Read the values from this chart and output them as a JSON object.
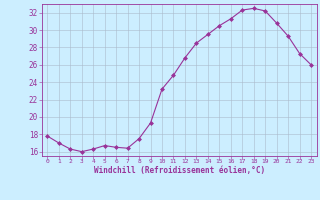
{
  "x": [
    0,
    1,
    2,
    3,
    4,
    5,
    6,
    7,
    8,
    9,
    10,
    11,
    12,
    13,
    14,
    15,
    16,
    17,
    18,
    19,
    20,
    21,
    22,
    23
  ],
  "y": [
    17.8,
    17.0,
    16.3,
    16.0,
    16.3,
    16.7,
    16.5,
    16.4,
    17.5,
    19.3,
    23.2,
    24.8,
    26.8,
    28.5,
    29.5,
    30.5,
    31.3,
    32.3,
    32.5,
    32.2,
    30.8,
    29.3,
    27.3,
    26.0
  ],
  "line_color": "#993399",
  "marker": "D",
  "marker_size": 2.0,
  "bg_color": "#cceeff",
  "grid_color": "#aabbcc",
  "xlabel": "Windchill (Refroidissement éolien,°C)",
  "ylim": [
    15.5,
    33.0
  ],
  "yticks": [
    16,
    18,
    20,
    22,
    24,
    26,
    28,
    30,
    32
  ],
  "xlim": [
    -0.5,
    23.5
  ],
  "xticks": [
    0,
    1,
    2,
    3,
    4,
    5,
    6,
    7,
    8,
    9,
    10,
    11,
    12,
    13,
    14,
    15,
    16,
    17,
    18,
    19,
    20,
    21,
    22,
    23
  ],
  "text_color": "#993399",
  "axis_color": "#993399"
}
